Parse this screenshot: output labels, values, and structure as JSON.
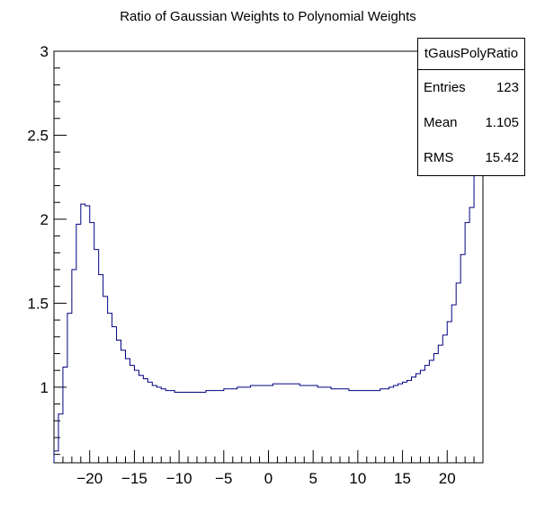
{
  "title": "Ratio of Gaussian Weights to Polynomial Weights",
  "stats": {
    "name": "tGausPolyRatio",
    "rows": [
      {
        "label": "Entries",
        "value": "123"
      },
      {
        "label": "Mean",
        "value": "1.105"
      },
      {
        "label": "RMS",
        "value": "15.42"
      }
    ]
  },
  "colors": {
    "line": "#000080",
    "frame": "#000000"
  },
  "chart_data": {
    "type": "line",
    "title": "Ratio of Gaussian Weights to Polynomial Weights",
    "xlabel": "",
    "ylabel": "",
    "xlim": [
      -24,
      24
    ],
    "ylim": [
      0.55,
      3.0
    ],
    "xticks": [
      "-20",
      "-15",
      "-10",
      "-5",
      "0",
      "5",
      "10",
      "15",
      "20"
    ],
    "xtick_values": [
      -20,
      -15,
      -10,
      -5,
      0,
      5,
      10,
      15,
      20
    ],
    "yticks": [
      "1",
      "1.5",
      "2",
      "2.5",
      "3"
    ],
    "ytick_values": [
      1,
      1.5,
      2,
      2.5,
      3
    ],
    "grid": false,
    "legend": "top-right",
    "series": [
      {
        "bin_edges_start": -24,
        "bin_width": 0.5,
        "values": [
          0.62,
          0.84,
          1.12,
          1.44,
          1.7,
          1.97,
          2.09,
          2.08,
          1.98,
          1.82,
          1.67,
          1.54,
          1.44,
          1.36,
          1.28,
          1.22,
          1.17,
          1.13,
          1.1,
          1.07,
          1.05,
          1.03,
          1.01,
          1.0,
          0.99,
          0.98,
          0.98,
          0.97,
          0.97,
          0.97,
          0.97,
          0.97,
          0.97,
          0.97,
          0.98,
          0.98,
          0.98,
          0.98,
          0.99,
          0.99,
          0.99,
          1.0,
          1.0,
          1.0,
          1.01,
          1.01,
          1.01,
          1.01,
          1.01,
          1.02,
          1.02,
          1.02,
          1.02,
          1.02,
          1.02,
          1.01,
          1.01,
          1.01,
          1.01,
          1.0,
          1.0,
          1.0,
          0.99,
          0.99,
          0.99,
          0.99,
          0.98,
          0.98,
          0.98,
          0.98,
          0.98,
          0.98,
          0.98,
          0.99,
          0.99,
          1.0,
          1.01,
          1.02,
          1.03,
          1.04,
          1.06,
          1.08,
          1.1,
          1.13,
          1.16,
          1.2,
          1.25,
          1.31,
          1.39,
          1.49,
          1.62,
          1.79,
          1.98,
          2.07,
          2.28,
          2.5,
          2.75,
          2.98
        ]
      }
    ]
  }
}
